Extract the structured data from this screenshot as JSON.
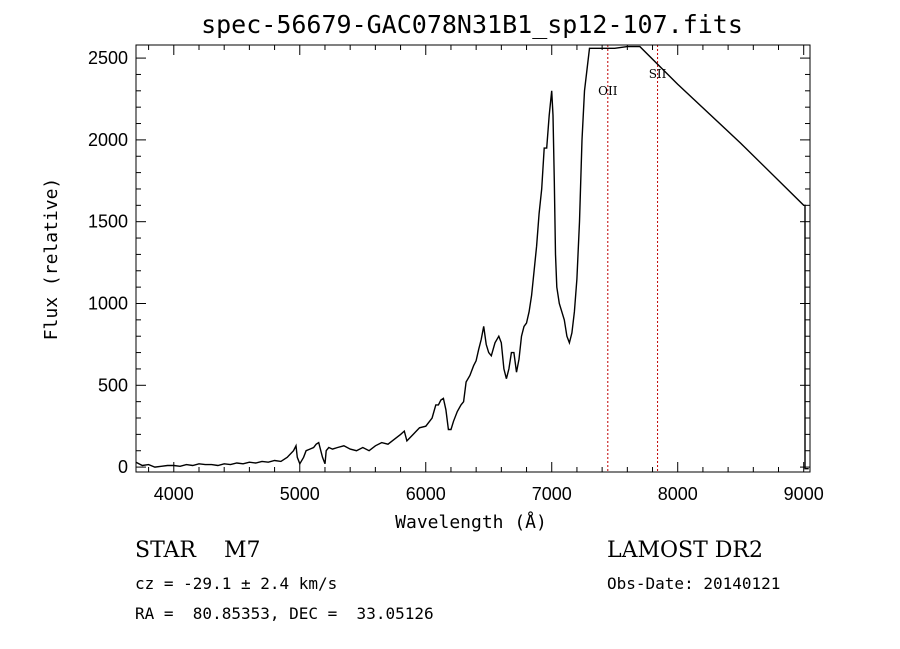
{
  "chart_data": {
    "type": "line",
    "title": "spec-56679-GAC078N31B1_sp12-107.fits",
    "xlabel": "Wavelength (Å)",
    "ylabel": "Flux (relative)",
    "xlim": [
      3700,
      9050
    ],
    "ylim": [
      -30,
      2580
    ],
    "x_ticks": [
      4000,
      5000,
      6000,
      7000,
      8000,
      9000
    ],
    "y_ticks": [
      0,
      500,
      1000,
      1500,
      2000,
      2500
    ],
    "series": [
      {
        "points": [
          [
            3700,
            30
          ],
          [
            3750,
            10
          ],
          [
            3800,
            15
          ],
          [
            3850,
            0
          ],
          [
            3900,
            5
          ],
          [
            3950,
            10
          ],
          [
            4000,
            10
          ],
          [
            4050,
            5
          ],
          [
            4100,
            15
          ],
          [
            4150,
            10
          ],
          [
            4200,
            20
          ],
          [
            4250,
            15
          ],
          [
            4300,
            15
          ],
          [
            4350,
            10
          ],
          [
            4400,
            20
          ],
          [
            4450,
            15
          ],
          [
            4500,
            25
          ],
          [
            4550,
            20
          ],
          [
            4600,
            30
          ],
          [
            4650,
            25
          ],
          [
            4700,
            35
          ],
          [
            4750,
            30
          ],
          [
            4800,
            40
          ],
          [
            4850,
            35
          ],
          [
            4900,
            60
          ],
          [
            4950,
            100
          ],
          [
            4970,
            130
          ],
          [
            4980,
            60
          ],
          [
            5000,
            20
          ],
          [
            5030,
            60
          ],
          [
            5050,
            100
          ],
          [
            5080,
            110
          ],
          [
            5110,
            120
          ],
          [
            5130,
            140
          ],
          [
            5150,
            150
          ],
          [
            5180,
            60
          ],
          [
            5200,
            20
          ],
          [
            5210,
            100
          ],
          [
            5230,
            120
          ],
          [
            5260,
            110
          ],
          [
            5300,
            120
          ],
          [
            5350,
            130
          ],
          [
            5400,
            110
          ],
          [
            5450,
            100
          ],
          [
            5500,
            120
          ],
          [
            5550,
            100
          ],
          [
            5600,
            130
          ],
          [
            5650,
            150
          ],
          [
            5700,
            140
          ],
          [
            5750,
            170
          ],
          [
            5800,
            200
          ],
          [
            5830,
            220
          ],
          [
            5850,
            160
          ],
          [
            5900,
            200
          ],
          [
            5950,
            240
          ],
          [
            6000,
            250
          ],
          [
            6050,
            300
          ],
          [
            6080,
            380
          ],
          [
            6100,
            380
          ],
          [
            6120,
            410
          ],
          [
            6140,
            420
          ],
          [
            6160,
            350
          ],
          [
            6180,
            230
          ],
          [
            6200,
            230
          ],
          [
            6220,
            280
          ],
          [
            6250,
            340
          ],
          [
            6280,
            380
          ],
          [
            6300,
            400
          ],
          [
            6320,
            520
          ],
          [
            6350,
            560
          ],
          [
            6380,
            620
          ],
          [
            6400,
            650
          ],
          [
            6420,
            720
          ],
          [
            6440,
            780
          ],
          [
            6460,
            860
          ],
          [
            6480,
            750
          ],
          [
            6500,
            700
          ],
          [
            6520,
            680
          ],
          [
            6550,
            760
          ],
          [
            6580,
            800
          ],
          [
            6600,
            760
          ],
          [
            6620,
            600
          ],
          [
            6640,
            540
          ],
          [
            6660,
            600
          ],
          [
            6680,
            700
          ],
          [
            6700,
            700
          ],
          [
            6720,
            580
          ],
          [
            6740,
            660
          ],
          [
            6760,
            800
          ],
          [
            6780,
            860
          ],
          [
            6800,
            880
          ],
          [
            6820,
            950
          ],
          [
            6840,
            1050
          ],
          [
            6860,
            1200
          ],
          [
            6880,
            1350
          ],
          [
            6900,
            1550
          ],
          [
            6920,
            1700
          ],
          [
            6940,
            1950
          ],
          [
            6960,
            1950
          ],
          [
            6980,
            2150
          ],
          [
            7000,
            2300
          ],
          [
            7010,
            2150
          ],
          [
            7020,
            1750
          ],
          [
            7030,
            1300
          ],
          [
            7040,
            1100
          ],
          [
            7060,
            1000
          ],
          [
            7080,
            950
          ],
          [
            7100,
            900
          ],
          [
            7120,
            800
          ],
          [
            7140,
            760
          ],
          [
            7160,
            820
          ],
          [
            7180,
            950
          ],
          [
            7200,
            1150
          ],
          [
            7220,
            1500
          ],
          [
            7240,
            2000
          ],
          [
            7260,
            2300
          ],
          [
            7280,
            2430
          ],
          [
            7300,
            2560
          ],
          [
            7400,
            2560
          ],
          [
            7500,
            2560
          ],
          [
            7600,
            2570
          ],
          [
            7700,
            2570
          ],
          [
            8000,
            2340
          ],
          [
            8500,
            1980
          ],
          [
            9000,
            1600
          ],
          [
            9010,
            1600
          ],
          [
            9010,
            -10
          ],
          [
            9040,
            -10
          ]
        ]
      }
    ],
    "lines": [
      {
        "label": "OII",
        "x": 7445,
        "color": "#c00000"
      },
      {
        "label": "SII",
        "x": 7840,
        "color": "#c00000"
      }
    ]
  },
  "info": {
    "star_class": "STAR    M7",
    "survey": "LAMOST DR2",
    "velocity": "cz = -29.1 ± 2.4 km/s",
    "obs_date": "Obs-Date: 20140121",
    "coords": "RA =  80.85353, DEC =  33.05126"
  }
}
